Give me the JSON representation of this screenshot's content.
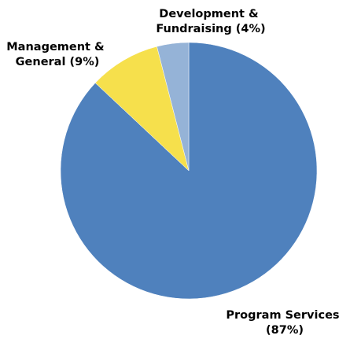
{
  "chart_data": {
    "type": "pie",
    "title": "",
    "start": "12 o'clock",
    "direction": "clockwise",
    "slices": [
      {
        "label": "Program Services (87%)",
        "value": 87,
        "color": "#4f81bd"
      },
      {
        "label": "Management & General (9%)",
        "value": 9,
        "color": "#f6e04c"
      },
      {
        "label": "Development & Fundraising (4%)",
        "value": 4,
        "color": "#95b3d7"
      }
    ],
    "labels": [
      {
        "lines": [
          "Program Services",
          "(87%)"
        ]
      },
      {
        "lines": [
          "Management &",
          "General (9%)"
        ]
      },
      {
        "lines": [
          "Development &",
          "Fundraising (4%)"
        ]
      }
    ]
  }
}
